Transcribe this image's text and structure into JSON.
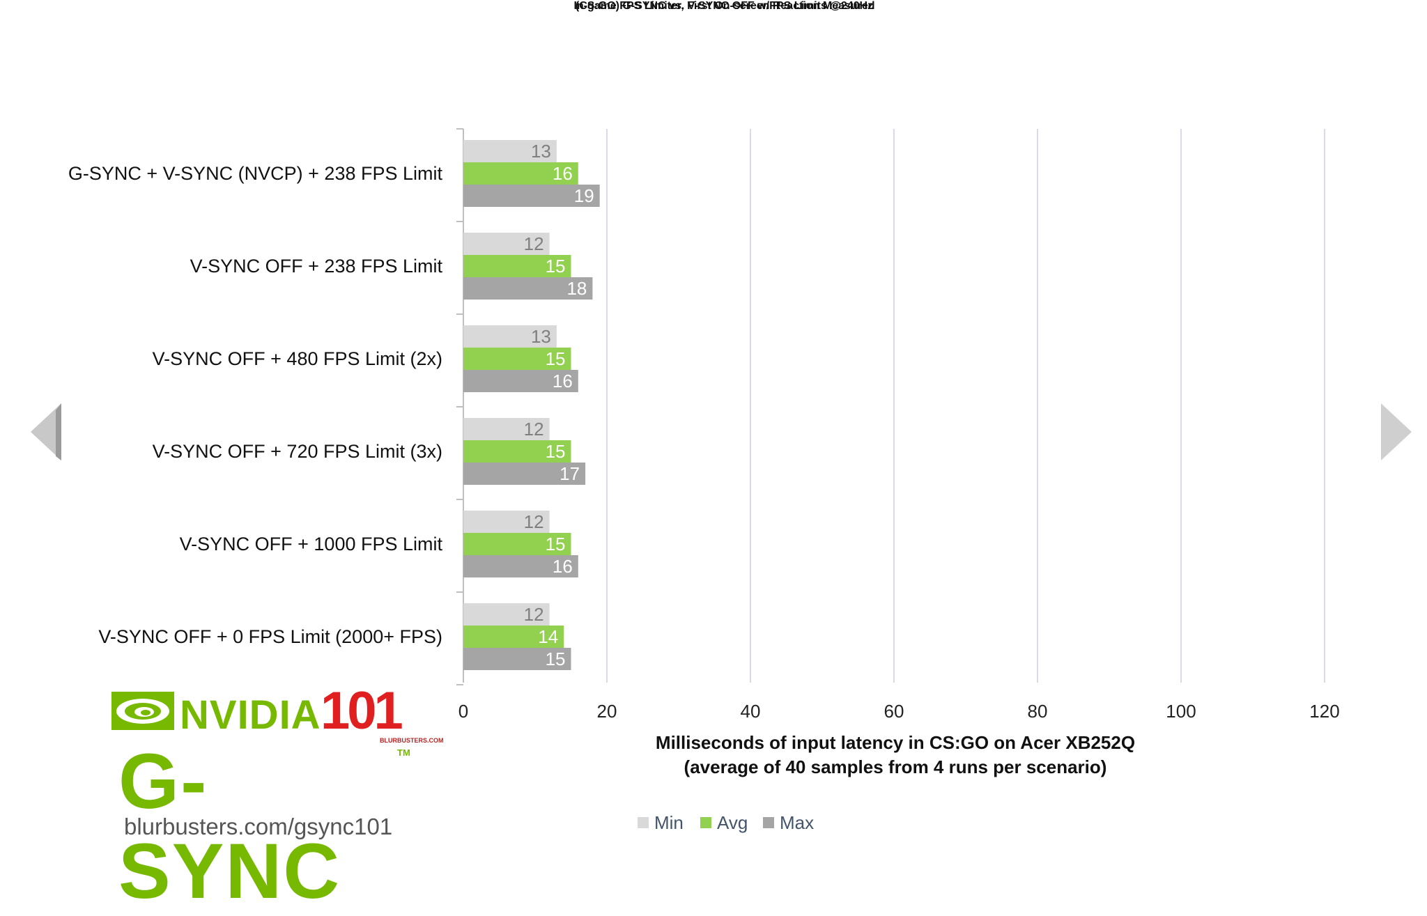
{
  "title": "(CS:GO) G-SYNC vs. V-SYNC OFF w/FPS Limits @240Hz",
  "subtitle": "In-game FPS Limiter, First On-screen Reaction Measured",
  "chart_data": {
    "type": "bar",
    "orientation": "horizontal",
    "categories": [
      "G-SYNC + V-SYNC (NVCP) + 238 FPS Limit",
      "V-SYNC OFF + 238 FPS Limit",
      "V-SYNC OFF + 480 FPS Limit (2x)",
      "V-SYNC OFF + 720 FPS Limit (3x)",
      "V-SYNC OFF + 1000 FPS Limit",
      "V-SYNC OFF + 0 FPS Limit (2000+ FPS)"
    ],
    "series": [
      {
        "name": "Min",
        "color": "#d9d9d9",
        "label_color": "#7f7f7f",
        "values": [
          13,
          12,
          13,
          12,
          12,
          12
        ]
      },
      {
        "name": "Avg",
        "color": "#92d050",
        "label_color": "#ffffff",
        "values": [
          16,
          15,
          15,
          15,
          15,
          14
        ]
      },
      {
        "name": "Max",
        "color": "#a5a5a5",
        "label_color": "#ffffff",
        "values": [
          19,
          18,
          16,
          17,
          16,
          15
        ]
      }
    ],
    "xlim": [
      0,
      130
    ],
    "xticks": [
      0,
      20,
      40,
      60,
      80,
      100,
      120
    ],
    "xlabel_line1": "Milliseconds of input latency in CS:GO on Acer XB252Q",
    "xlabel_line2": "(average of 40 samples from 4 runs per scenario)",
    "grid": true,
    "legend_position": "bottom"
  },
  "logo": {
    "nvidia": "NVIDIA",
    "number": "101",
    "small_text": "BLURBUSTERS.COM",
    "gsync": "G-SYNC",
    "tm": "TM",
    "url": "blurbusters.com/gsync101"
  },
  "colors": {
    "grid": "#d9d9e8",
    "axis": "#bfbfbf",
    "arrow": "#c8c8c8"
  },
  "icons": {
    "prev": "chevron-left-icon",
    "next": "chevron-right-icon"
  }
}
